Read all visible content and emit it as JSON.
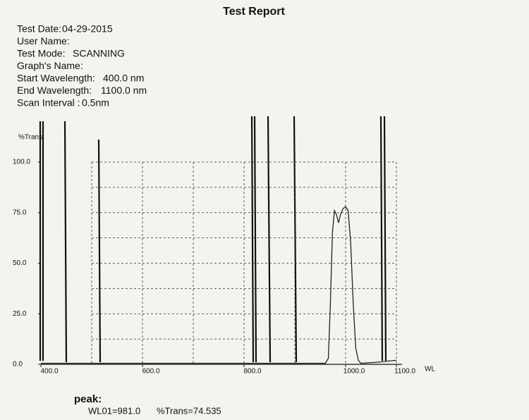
{
  "title": "Test Report",
  "info": [
    [
      "Test Date:",
      "04-29-2015"
    ],
    [
      "User Name:"
    ],
    [
      "Test Mode:",
      "SCANNING"
    ],
    [
      "Graph's Name:"
    ],
    [
      "Start Wavelength:",
      "400.0  nm"
    ],
    [
      "End Wavelength:",
      "1100.0  nm"
    ],
    [
      "Scan Interval :",
      "0.5nm"
    ]
  ],
  "chart_data": {
    "type": "line",
    "y_label": "%Trans",
    "x_label": "WL",
    "xlim": [
      400,
      1100
    ],
    "ylim": [
      0,
      100
    ],
    "xticks": [
      {
        "value": 400,
        "label": "400.0"
      },
      {
        "value": 600,
        "label": "600.0"
      },
      {
        "value": 800,
        "label": "800.0"
      },
      {
        "value": 1000,
        "label": "1000.0"
      },
      {
        "value": 1100,
        "label": "1100.0"
      }
    ],
    "yticks": [
      {
        "value": 0,
        "label": "0.0"
      },
      {
        "value": 25,
        "label": "25.0"
      },
      {
        "value": 50,
        "label": "50.0"
      },
      {
        "value": 75,
        "label": "75.0"
      },
      {
        "value": 100,
        "label": "100.0"
      }
    ],
    "xgrid": [
      500,
      600,
      700,
      800,
      900,
      1000,
      1100
    ],
    "ygrid": [
      12.5,
      25,
      37.5,
      50,
      62.5,
      75,
      87.5,
      100
    ],
    "grid": true,
    "color": "#222222",
    "x": [
      400,
      960,
      966,
      970,
      974,
      978,
      982,
      986,
      990,
      995,
      1000,
      1005,
      1010,
      1015,
      1020,
      1025,
      1030,
      1060,
      1100
    ],
    "values": [
      0.5,
      0.5,
      3,
      30,
      65,
      76,
      74,
      70,
      74,
      77,
      78,
      76,
      60,
      30,
      8,
      2,
      0.5,
      1,
      2
    ]
  },
  "peak": {
    "title": "peak:",
    "wl": "WL01=981.0",
    "trans": "%Trans=74.535"
  }
}
